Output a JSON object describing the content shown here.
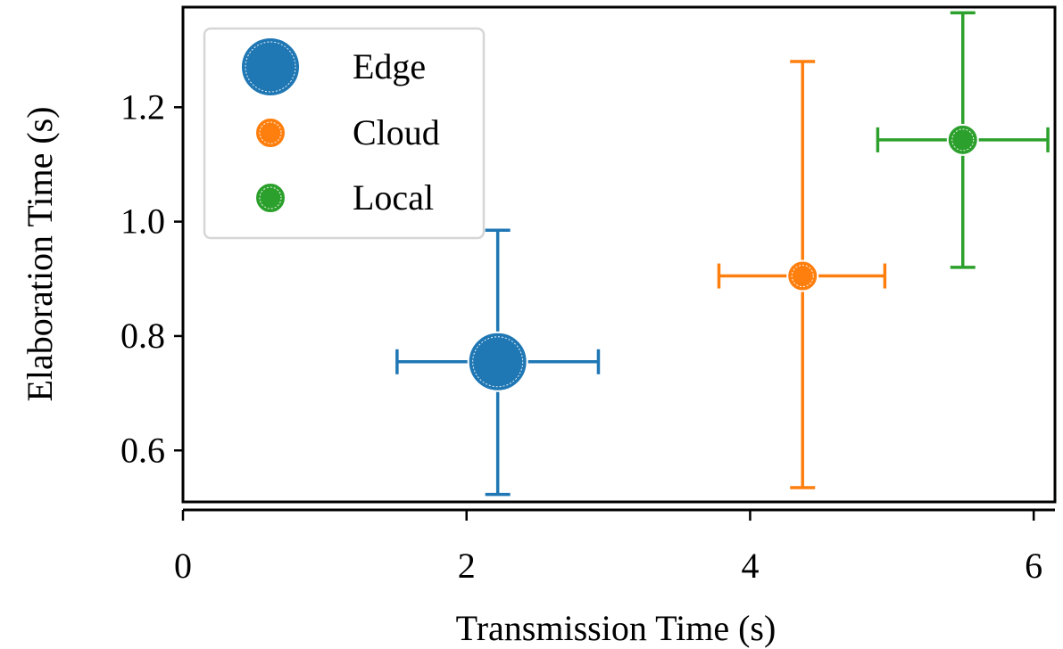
{
  "chart_data": {
    "type": "scatter",
    "xlabel": "Transmission Time (s)",
    "ylabel": "Elaboration Time (s)",
    "xlim": [
      0,
      6.15
    ],
    "ylim": [
      0.51,
      1.375
    ],
    "xticks": [
      "0",
      "2",
      "4",
      "6"
    ],
    "yticks": [
      "0.6",
      "0.8",
      "1.0",
      "1.2"
    ],
    "grid": false,
    "legend_position": "top-left",
    "series": [
      {
        "name": "Edge",
        "color": "#1f77b4",
        "x": 2.22,
        "y": 0.755,
        "xerr": [
          1.51,
          2.93
        ],
        "yerr": [
          0.523,
          0.985
        ],
        "marker_scale": "large"
      },
      {
        "name": "Cloud",
        "color": "#ff7f0e",
        "x": 4.37,
        "y": 0.905,
        "xerr": [
          3.78,
          4.95
        ],
        "yerr": [
          0.535,
          1.28
        ],
        "marker_scale": "small"
      },
      {
        "name": "Local",
        "color": "#2ca02c",
        "x": 5.5,
        "y": 1.143,
        "xerr": [
          4.9,
          6.1
        ],
        "yerr": [
          0.92,
          1.365
        ],
        "marker_scale": "small"
      }
    ]
  }
}
